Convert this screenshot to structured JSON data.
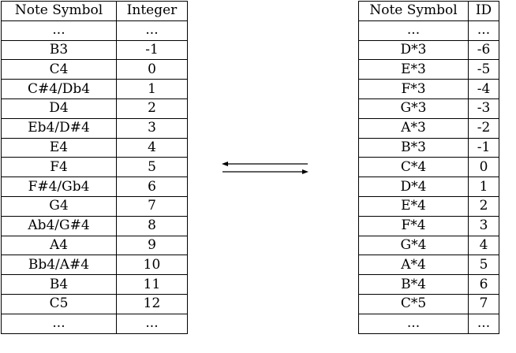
{
  "left_table": {
    "headers": [
      "Note Symbol",
      "Integer"
    ],
    "rows": [
      [
        "...",
        "..."
      ],
      [
        "B3",
        "-1"
      ],
      [
        "C4",
        "0"
      ],
      [
        "C#4/Db4",
        "1"
      ],
      [
        "D4",
        "2"
      ],
      [
        "Eb4/D#4",
        "3"
      ],
      [
        "E4",
        "4"
      ],
      [
        "F4",
        "5"
      ],
      [
        "F#4/Gb4",
        "6"
      ],
      [
        "G4",
        "7"
      ],
      [
        "Ab4/G#4",
        "8"
      ],
      [
        "A4",
        "9"
      ],
      [
        "Bb4/A#4",
        "10"
      ],
      [
        "B4",
        "11"
      ],
      [
        "C5",
        "12"
      ],
      [
        "...",
        "..."
      ]
    ]
  },
  "right_table": {
    "headers": [
      "Note Symbol",
      "ID"
    ],
    "rows": [
      [
        "...",
        "..."
      ],
      [
        "D*3",
        "-6"
      ],
      [
        "E*3",
        "-5"
      ],
      [
        "F*3",
        "-4"
      ],
      [
        "G*3",
        "-3"
      ],
      [
        "A*3",
        "-2"
      ],
      [
        "B*3",
        "-1"
      ],
      [
        "C*4",
        "0"
      ],
      [
        "D*4",
        "1"
      ],
      [
        "E*4",
        "2"
      ],
      [
        "F*4",
        "3"
      ],
      [
        "G*4",
        "4"
      ],
      [
        "A*4",
        "5"
      ],
      [
        "B*4",
        "6"
      ],
      [
        "C*5",
        "7"
      ],
      [
        "...",
        "..."
      ]
    ]
  },
  "arrows": {
    "icon": "bidirectional-arrows-icon",
    "color": "#000000"
  }
}
